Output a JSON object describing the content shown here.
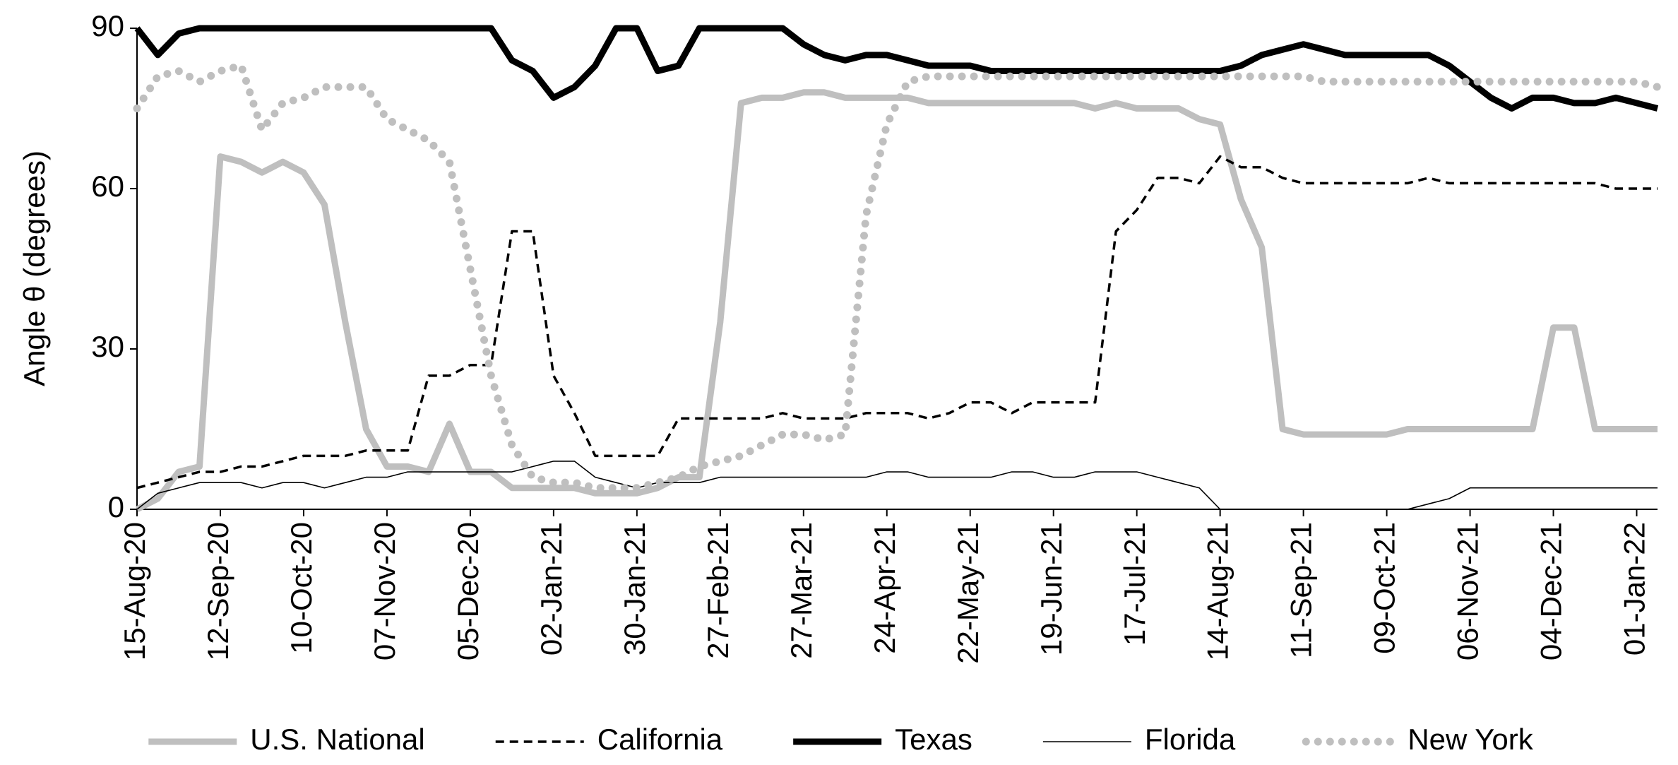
{
  "chart_data": {
    "type": "line",
    "ylabel": "Angle θ (degrees)",
    "categories": [
      "15-Aug-20",
      null,
      null,
      null,
      "12-Sep-20",
      null,
      null,
      null,
      "10-Oct-20",
      null,
      null,
      null,
      "07-Nov-20",
      null,
      null,
      null,
      "05-Dec-20",
      null,
      null,
      null,
      "02-Jan-21",
      null,
      null,
      null,
      "30-Jan-21",
      null,
      null,
      null,
      "27-Feb-21",
      null,
      null,
      null,
      "27-Mar-21",
      null,
      null,
      null,
      "24-Apr-21",
      null,
      null,
      null,
      "22-May-21",
      null,
      null,
      null,
      "19-Jun-21",
      null,
      null,
      null,
      "17-Jul-21",
      null,
      null,
      null,
      "14-Aug-21",
      null,
      null,
      null,
      "11-Sep-21",
      null,
      null,
      null,
      "09-Oct-21",
      null,
      null,
      null,
      "06-Nov-21",
      null,
      null,
      null,
      "04-Dec-21",
      null,
      null,
      null,
      "01-Jan-22",
      null
    ],
    "ylim": [
      0,
      90
    ],
    "yticks": [
      0,
      30,
      60,
      90
    ],
    "grid": false,
    "legend": "bottom",
    "series": [
      {
        "name": "U.S. National",
        "color": "#bfbfbf",
        "line_style": "solid",
        "line_weight": "heavy",
        "values": [
          0,
          2,
          7,
          8,
          66,
          65,
          63,
          65,
          63,
          57,
          35,
          15,
          8,
          8,
          7,
          16,
          7,
          7,
          4,
          4,
          4,
          4,
          3,
          3,
          3,
          4,
          6,
          6,
          35,
          76,
          77,
          77,
          78,
          78,
          77,
          77,
          77,
          77,
          76,
          76,
          76,
          76,
          76,
          76,
          76,
          76,
          75,
          76,
          75,
          75,
          75,
          73,
          72,
          58,
          49,
          15,
          14,
          14,
          14,
          14,
          14,
          15,
          15,
          15,
          15,
          15,
          15,
          15,
          34,
          34,
          15,
          15,
          15,
          15
        ]
      },
      {
        "name": "California",
        "color": "#000000",
        "line_style": "dashed",
        "line_weight": "medium",
        "values": [
          4,
          5,
          6,
          7,
          7,
          8,
          8,
          9,
          10,
          10,
          10,
          11,
          11,
          11,
          25,
          25,
          27,
          27,
          52,
          52,
          25,
          18,
          10,
          10,
          10,
          10,
          17,
          17,
          17,
          17,
          17,
          18,
          17,
          17,
          17,
          18,
          18,
          18,
          17,
          18,
          20,
          20,
          18,
          20,
          20,
          20,
          20,
          52,
          56,
          62,
          62,
          61,
          66,
          64,
          64,
          62,
          61,
          61,
          61,
          61,
          61,
          61,
          62,
          61,
          61,
          61,
          61,
          61,
          61,
          61,
          61,
          60,
          60,
          60
        ]
      },
      {
        "name": "Texas",
        "color": "#000000",
        "line_style": "solid",
        "line_weight": "heavy",
        "values": [
          90,
          85,
          89,
          90,
          90,
          90,
          90,
          90,
          90,
          90,
          90,
          90,
          90,
          90,
          90,
          90,
          90,
          90,
          84,
          82,
          77,
          79,
          83,
          90,
          90,
          82,
          83,
          90,
          90,
          90,
          90,
          90,
          87,
          85,
          84,
          85,
          85,
          84,
          83,
          83,
          83,
          82,
          82,
          82,
          82,
          82,
          82,
          82,
          82,
          82,
          82,
          82,
          82,
          83,
          85,
          86,
          87,
          86,
          85,
          85,
          85,
          85,
          85,
          83,
          80,
          77,
          75,
          77,
          77,
          76,
          76,
          77,
          76,
          75
        ]
      },
      {
        "name": "Florida",
        "color": "#000000",
        "line_style": "solid",
        "line_weight": "thin",
        "values": [
          0,
          3,
          4,
          5,
          5,
          5,
          4,
          5,
          5,
          4,
          5,
          6,
          6,
          7,
          7,
          7,
          7,
          7,
          7,
          8,
          9,
          9,
          6,
          5,
          4,
          5,
          5,
          5,
          6,
          6,
          6,
          6,
          6,
          6,
          6,
          6,
          7,
          7,
          6,
          6,
          6,
          6,
          7,
          7,
          6,
          6,
          7,
          7,
          7,
          6,
          5,
          4,
          0,
          0,
          0,
          0,
          0,
          0,
          0,
          0,
          0,
          0,
          1,
          2,
          4,
          4,
          4,
          4,
          4,
          4,
          4,
          4,
          4,
          4
        ]
      },
      {
        "name": "New York",
        "color": "#bfbfbf",
        "line_style": "dotted",
        "line_weight": "heavy",
        "values": [
          75,
          81,
          82,
          80,
          82,
          83,
          71,
          76,
          77,
          79,
          79,
          79,
          73,
          71,
          69,
          65,
          45,
          25,
          12,
          6,
          5,
          5,
          4,
          4,
          4,
          5,
          6,
          8,
          9,
          10,
          12,
          14,
          14,
          13,
          14,
          55,
          72,
          80,
          81,
          81,
          81,
          81,
          81,
          81,
          81,
          81,
          81,
          81,
          81,
          81,
          81,
          81,
          81,
          81,
          81,
          81,
          81,
          80,
          80,
          80,
          80,
          80,
          80,
          80,
          80,
          80,
          80,
          80,
          80,
          80,
          80,
          80,
          80,
          79
        ]
      }
    ]
  }
}
